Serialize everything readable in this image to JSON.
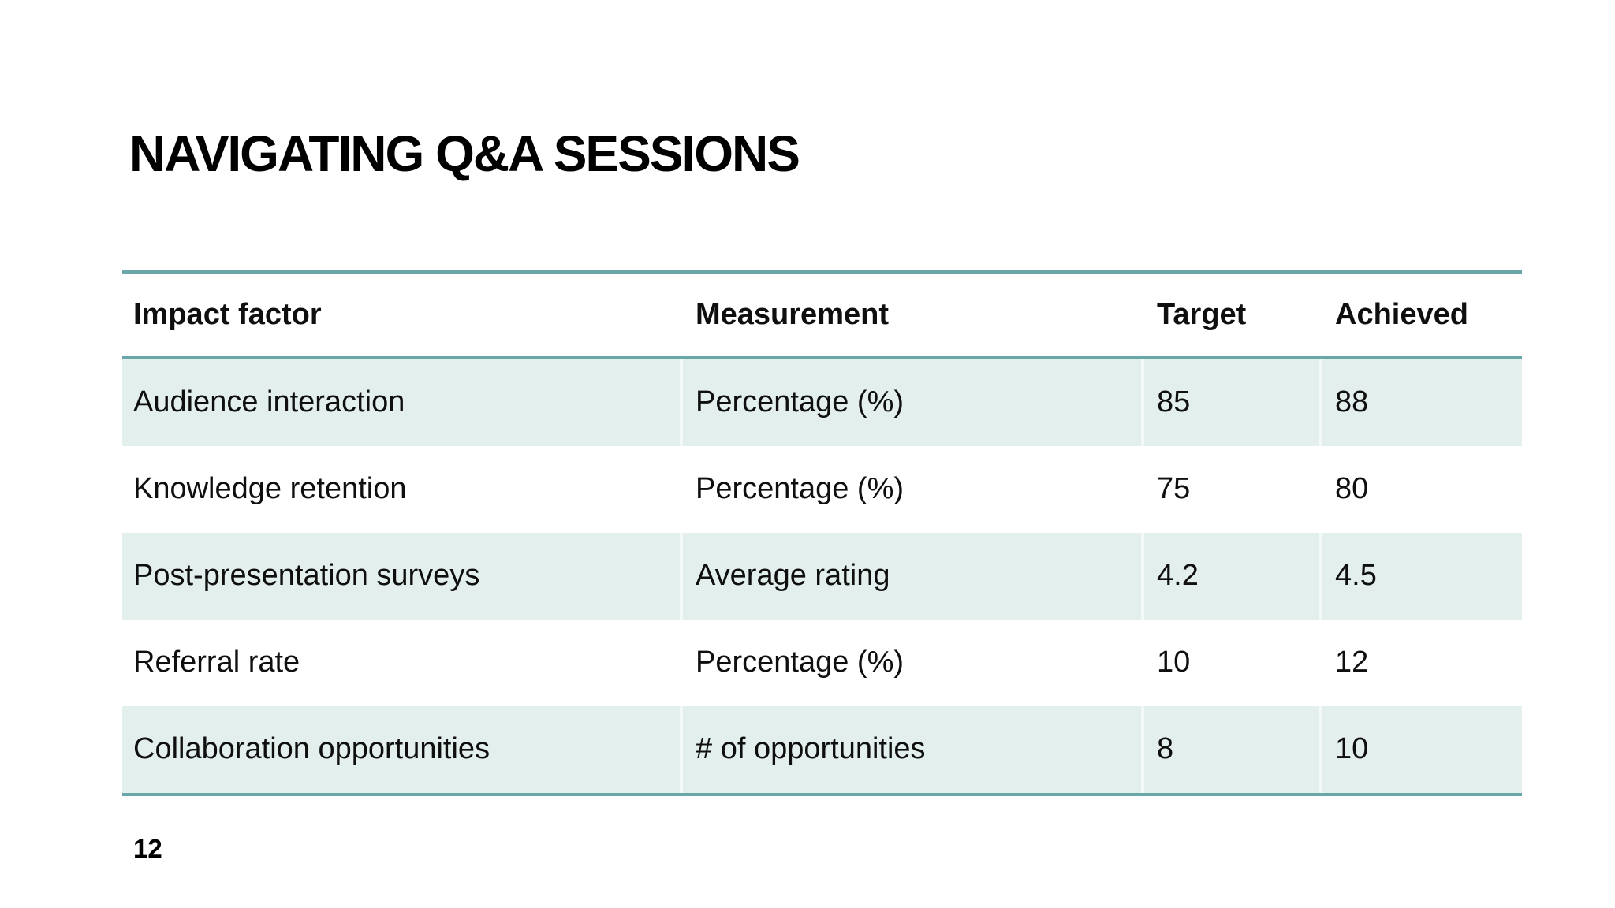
{
  "slide": {
    "title": "NAVIGATING Q&A SESSIONS",
    "page_number": "12"
  },
  "table": {
    "headers": [
      "Impact factor",
      "Measurement",
      "Target",
      "Achieved"
    ],
    "rows": [
      {
        "cells": [
          "Audience interaction",
          "Percentage (%)",
          "85",
          "88"
        ]
      },
      {
        "cells": [
          "Knowledge retention",
          "Percentage (%)",
          "75",
          "80"
        ]
      },
      {
        "cells": [
          "Post-presentation surveys",
          "Average rating",
          "4.2",
          "4.5"
        ]
      },
      {
        "cells": [
          "Referral rate",
          "Percentage (%)",
          "10",
          "12"
        ]
      },
      {
        "cells": [
          "Collaboration opportunities",
          "# of opportunities",
          "8",
          "10"
        ]
      }
    ]
  },
  "colors": {
    "accent_teal": "#6aa7a9",
    "row_shade": "#e2efed",
    "text": "#0f0f0f",
    "background": "#ffffff"
  }
}
